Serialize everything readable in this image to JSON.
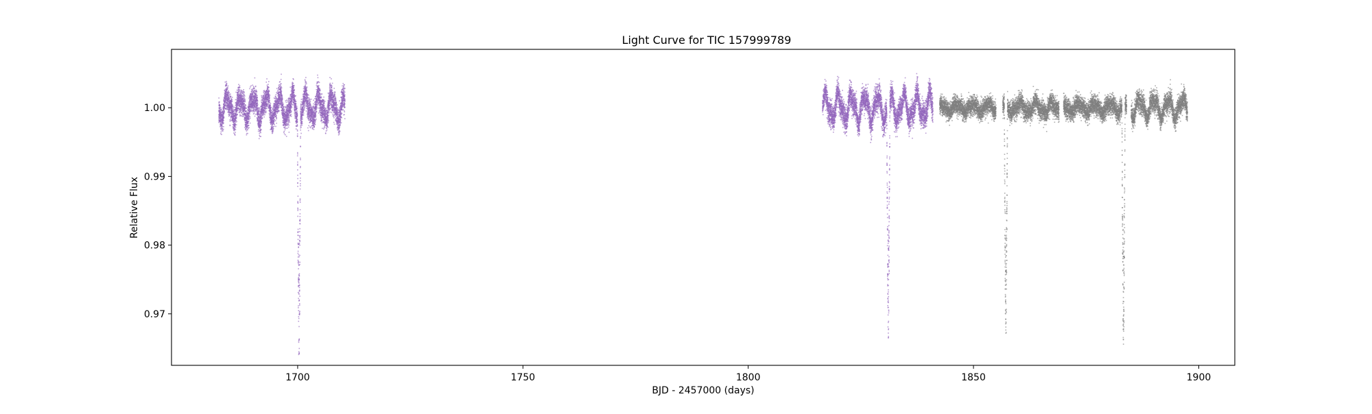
{
  "chart_data": {
    "type": "scatter",
    "title": "Light Curve for TIC 157999789",
    "xlabel": "BJD - 2457000 (days)",
    "ylabel": "Relative Flux",
    "xlim": [
      1672,
      1908
    ],
    "ylim": [
      0.9625,
      1.0085
    ],
    "x_ticks": [
      1700,
      1750,
      1800,
      1850,
      1900
    ],
    "y_ticks": [
      0.97,
      0.98,
      0.99,
      1.0
    ],
    "x_tick_labels": [
      "1700",
      "1750",
      "1800",
      "1850",
      "1900"
    ],
    "y_tick_labels": [
      "0.97",
      "0.98",
      "0.99",
      "1.00"
    ],
    "grid": false,
    "legend": false,
    "colors": {
      "purple": "#9467bd",
      "gray": "#7f7f7f"
    },
    "series": [
      {
        "color": "purple",
        "segments": [
          {
            "x_range": [
              1682.5,
              1710.5
            ],
            "baseline": 1.0,
            "scatter": 0.0018,
            "wave_amp": 0.0016,
            "wave_period": 2.9
          },
          {
            "x_range": [
              1816.5,
              1841.0
            ],
            "baseline": 1.0,
            "scatter": 0.0018,
            "wave_amp": 0.0017,
            "wave_period": 2.9
          }
        ],
        "dips": [
          {
            "center": 1700.3,
            "min_flux": 0.9635,
            "width": 0.35
          },
          {
            "center": 1831.1,
            "min_flux": 0.9655,
            "width": 0.35
          }
        ]
      },
      {
        "color": "gray",
        "segments": [
          {
            "x_range": [
              1842.5,
              1855.0
            ],
            "baseline": 1.0,
            "scatter": 0.0013,
            "wave_amp": 0.0005,
            "wave_period": 3.5
          },
          {
            "x_range": [
              1856.5,
              1869.0
            ],
            "baseline": 1.0,
            "scatter": 0.0014,
            "wave_amp": 0.0007,
            "wave_period": 3.5
          },
          {
            "x_range": [
              1870.0,
              1884.0
            ],
            "baseline": 1.0,
            "scatter": 0.0014,
            "wave_amp": 0.0006,
            "wave_period": 3.5
          },
          {
            "x_range": [
              1885.0,
              1897.5
            ],
            "baseline": 1.0,
            "scatter": 0.0015,
            "wave_amp": 0.0012,
            "wave_period": 3.2
          }
        ],
        "dips": [
          {
            "center": 1857.2,
            "min_flux": 0.9652,
            "width": 0.35
          },
          {
            "center": 1883.3,
            "min_flux": 0.9652,
            "width": 0.35
          }
        ]
      }
    ]
  }
}
